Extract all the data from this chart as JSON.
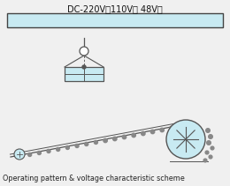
{
  "title_text": "DC-220V（110V、 48V）",
  "caption": "Operating pattern & voltage characteristic scheme",
  "fig_bg": "#f0f0f0",
  "light_blue": "#c8eaf2",
  "line_color": "#555555",
  "dark_line": "#333333",
  "white": "#ffffff",
  "dot_color": "#888888",
  "title_fontsize": 7.0,
  "caption_fontsize": 5.8
}
